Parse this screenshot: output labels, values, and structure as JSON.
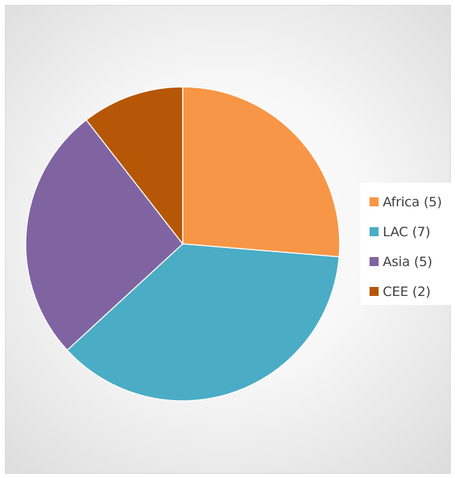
{
  "chart_data": {
    "type": "pie",
    "title": "",
    "categories": [
      "Africa (5)",
      "LAC (7)",
      "Asia (5)",
      "CEE (2)"
    ],
    "values": [
      5,
      7,
      5,
      2
    ],
    "colors": [
      "#F79646",
      "#4BACC6",
      "#8064A2",
      "#B65708"
    ],
    "start_angle": "12 o'clock",
    "direction": "clockwise",
    "legend_position": "right",
    "slice_border": "white"
  }
}
